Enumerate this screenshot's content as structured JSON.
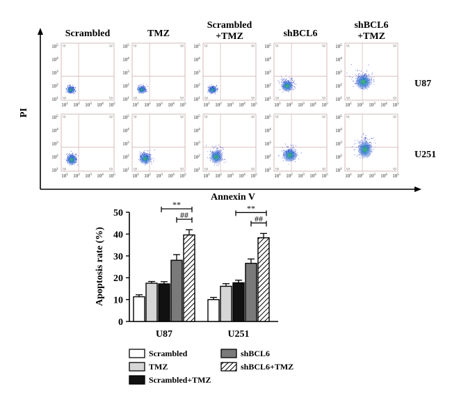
{
  "flow_panel": {
    "columns": [
      "Scrambled",
      "TMZ",
      "Scrambled\n+TMZ",
      "shBCL6",
      "shBCL6\n+TMZ"
    ],
    "rows": [
      "U87",
      "U251"
    ],
    "y_axis_label": "PI",
    "x_axis_label": "Annexin V",
    "y_tick_exponents": [
      "1",
      "2",
      "3",
      "4",
      "5"
    ],
    "x_tick_exponents": [
      "1",
      "2",
      "3",
      "4",
      "5"
    ],
    "tick_base": "10",
    "quadrants": [
      "Q1",
      "Q2",
      "Q3",
      "Q4"
    ]
  },
  "chart_data": {
    "type": "bar",
    "categories": [
      "U87",
      "U251"
    ],
    "series": [
      {
        "name": "Scrambled",
        "values": [
          11.3,
          10.0
        ],
        "errors": [
          0.9,
          1.0
        ],
        "fill": "white"
      },
      {
        "name": "TMZ",
        "values": [
          17.5,
          16.1
        ],
        "errors": [
          0.8,
          1.2
        ],
        "fill": "lightgray"
      },
      {
        "name": "Scrambled+TMZ",
        "values": [
          17.2,
          17.7
        ],
        "errors": [
          1.0,
          1.2
        ],
        "fill": "black"
      },
      {
        "name": "shBCL6",
        "values": [
          28.0,
          26.6
        ],
        "errors": [
          2.6,
          2.0
        ],
        "fill": "darkgray"
      },
      {
        "name": "shBCL6+TMZ",
        "values": [
          39.6,
          38.3
        ],
        "errors": [
          2.4,
          2.0
        ],
        "fill": "hatched"
      }
    ],
    "ylabel": "Apoptosis rate (%)",
    "xlabel": "",
    "ylim": [
      0,
      50
    ],
    "yticks": [
      0,
      10,
      20,
      30,
      40,
      50
    ],
    "significance": [
      {
        "category": "U87",
        "from": "Scrambled+TMZ",
        "to": "shBCL6+TMZ",
        "label": "**"
      },
      {
        "category": "U87",
        "from": "shBCL6",
        "to": "shBCL6+TMZ",
        "label": "##"
      },
      {
        "category": "U251",
        "from": "Scrambled+TMZ",
        "to": "shBCL6+TMZ",
        "label": "**"
      },
      {
        "category": "U251",
        "from": "shBCL6",
        "to": "shBCL6+TMZ",
        "label": "##"
      }
    ],
    "legend_position": "bottom",
    "colors": {
      "white": "#ffffff",
      "lightgray": "#d6d6d6",
      "black": "#111111",
      "darkgray": "#7a7a7a",
      "hatched": "#ffffff"
    }
  }
}
